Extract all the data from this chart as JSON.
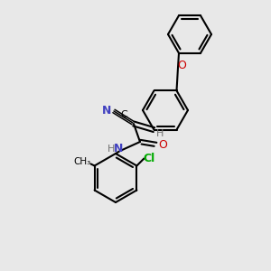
{
  "background_color": "#e8e8e8",
  "bond_color": "#000000",
  "atom_colors": {
    "N": "#4040c0",
    "O": "#cc0000",
    "Cl": "#00aa00",
    "C": "#000000",
    "H": "#707070"
  },
  "figsize": [
    3.0,
    3.0
  ],
  "dpi": 100
}
